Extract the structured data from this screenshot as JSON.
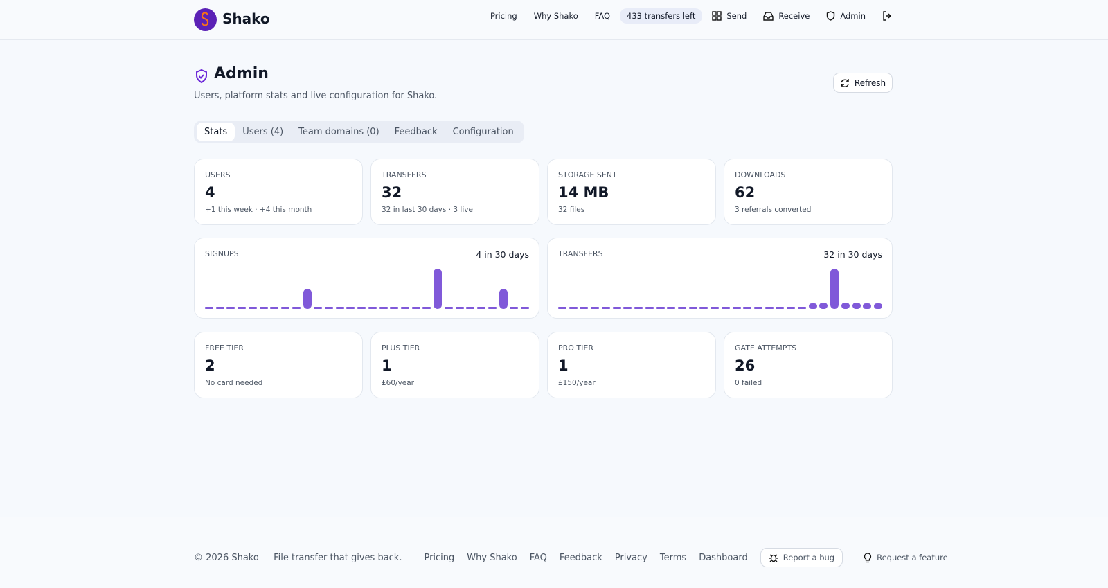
{
  "header": {
    "brand": "Shako",
    "nav": [
      "Pricing",
      "Why Shako",
      "FAQ"
    ],
    "quota": "433 transfers left",
    "actions": [
      "Send",
      "Receive",
      "Admin"
    ]
  },
  "page": {
    "title": "Admin",
    "subtitle": "Users, platform stats and live configuration for Shako.",
    "refresh": "Refresh",
    "tabs": [
      "Stats",
      "Users (4)",
      "Team domains (0)",
      "Feedback",
      "Configuration"
    ]
  },
  "stats": [
    {
      "label": "USERS",
      "value": "4",
      "note": "+1 this week · +4 this month"
    },
    {
      "label": "TRANSFERS",
      "value": "32",
      "note": "32 in last 30 days · 3 live"
    },
    {
      "label": "STORAGE SENT",
      "value": "14 MB",
      "note": "32 files"
    },
    {
      "label": "DOWNLOADS",
      "value": "62",
      "note": "3 referrals converted"
    }
  ],
  "charts": [
    {
      "label": "SIGNUPS",
      "summary": "4 in 30 days",
      "values": [
        0,
        0,
        0,
        0,
        0,
        0,
        0,
        0,
        0,
        1,
        0,
        0,
        0,
        0,
        0,
        0,
        0,
        0,
        0,
        0,
        0,
        2,
        0,
        0,
        0,
        0,
        0,
        1,
        0,
        0
      ]
    },
    {
      "label": "TRANSFERS",
      "summary": "32 in 30 days",
      "values": [
        0,
        0,
        0,
        0,
        0,
        0,
        0,
        0,
        0,
        0,
        0,
        0,
        0,
        0,
        0,
        0,
        0,
        0,
        0,
        0,
        0,
        0,
        0,
        1,
        3,
        20,
        3,
        3,
        1,
        1
      ]
    }
  ],
  "tiers": [
    {
      "label": "FREE TIER",
      "value": "2",
      "note": "No card needed"
    },
    {
      "label": "PLUS TIER",
      "value": "1",
      "note": "£60/year"
    },
    {
      "label": "PRO TIER",
      "value": "1",
      "note": "£150/year"
    },
    {
      "label": "GATE ATTEMPTS",
      "value": "26",
      "note": "0 failed"
    }
  ],
  "footer": {
    "copyright": "© 2026 Shako — File transfer that gives back.",
    "links": [
      "Pricing",
      "Why Shako",
      "FAQ",
      "Feedback",
      "Privacy",
      "Terms",
      "Dashboard"
    ],
    "bug": "Report a bug",
    "feature": "Request a feature"
  }
}
